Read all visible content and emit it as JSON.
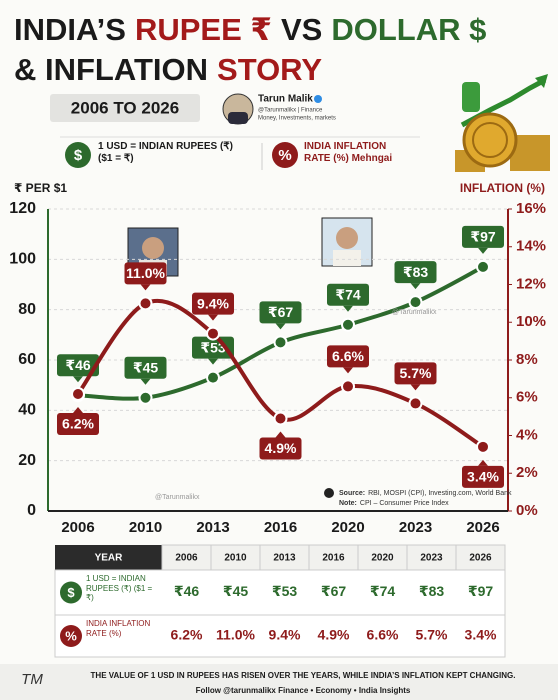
{
  "header": {
    "title_line1": [
      "INDIA’S",
      "RUPEE ₹",
      "VS",
      "DOLLAR $"
    ],
    "title_line2": [
      "& INFLATION",
      "STORY"
    ],
    "subtitle": "2006 TO 2026",
    "author": {
      "name": "Tarun Malik",
      "handle": "@Tarunmalikx | Finance",
      "tagline": "Money, Investments, markets"
    }
  },
  "icons": {
    "usd": "$",
    "inflation": "%"
  },
  "chart_data": {
    "type": "line",
    "y_label": "₹ PER $1",
    "y2_label": "INFLATION (%)",
    "categories": [
      "2006",
      "2010",
      "2013",
      "2016",
      "2020",
      "2023",
      "2026"
    ],
    "series": [
      {
        "name": "1 USD = INDIAN RUPEES (₹) ($1 = ₹)",
        "color": "#2d6a2d",
        "values": [
          46,
          45,
          53,
          67,
          74,
          83,
          97
        ],
        "value_labels": [
          "₹46",
          "₹45",
          "₹53",
          "₹67",
          "₹74",
          "₹83",
          "₹97"
        ]
      },
      {
        "name": "INDIA INFLATION RATE (%) Mehngai",
        "color": "#8e1b1b",
        "axis": "y2",
        "values": [
          6.2,
          11.0,
          9.4,
          4.9,
          6.6,
          5.7,
          3.4
        ],
        "value_labels": [
          "6.2%",
          "11.0%",
          "9.4%",
          "4.9%",
          "6.6%",
          "5.7%",
          "3.4%"
        ]
      }
    ],
    "ylim": [
      0,
      120
    ],
    "yticks": [
      0,
      20,
      40,
      60,
      80,
      100,
      120
    ],
    "y2lim": [
      0,
      16
    ],
    "y2ticks": [
      {
        "value": 0,
        "label": "0%"
      },
      {
        "value": 2,
        "label": "2%"
      },
      {
        "value": 4,
        "label": "4%"
      },
      {
        "value": 6,
        "label": "6%"
      },
      {
        "value": 8,
        "label": "8%"
      },
      {
        "value": 10,
        "label": "10%"
      },
      {
        "value": 12,
        "label": "12%"
      },
      {
        "value": 14,
        "label": "14%"
      },
      {
        "value": 16,
        "label": "16%"
      }
    ],
    "grid": true,
    "watermarks": [
      "@Tarunmalikx",
      "@Tarunmalikx"
    ],
    "source": {
      "label": "Source:",
      "text": "RBI, MOSPI (CPI), Investing.com, World Bank",
      "note_label": "Note:",
      "note": "CPI – Consumer Price Index"
    }
  },
  "table": {
    "header": [
      "YEAR",
      "2006",
      "2010",
      "2013",
      "2016",
      "2020",
      "2023",
      "2026"
    ],
    "rows": [
      {
        "label": "1 USD = INDIAN RUPEES (₹) ($1 = ₹)",
        "cells": [
          "₹46",
          "₹45",
          "₹53",
          "₹67",
          "₹74",
          "₹83",
          "₹97"
        ]
      },
      {
        "label": "INDIA INFLATION RATE (%)",
        "cells": [
          "6.2%",
          "11.0%",
          "9.4%",
          "4.9%",
          "6.6%",
          "5.7%",
          "3.4%"
        ]
      }
    ]
  },
  "footer": {
    "signature": "TM",
    "line1": "THE VALUE OF 1 USD IN RUPEES HAS RISEN OVER THE YEARS, WHILE INDIA’S INFLATION KEPT CHANGING.",
    "line2": "Follow @tarunmalikx Finance • Economy • India Insights"
  }
}
